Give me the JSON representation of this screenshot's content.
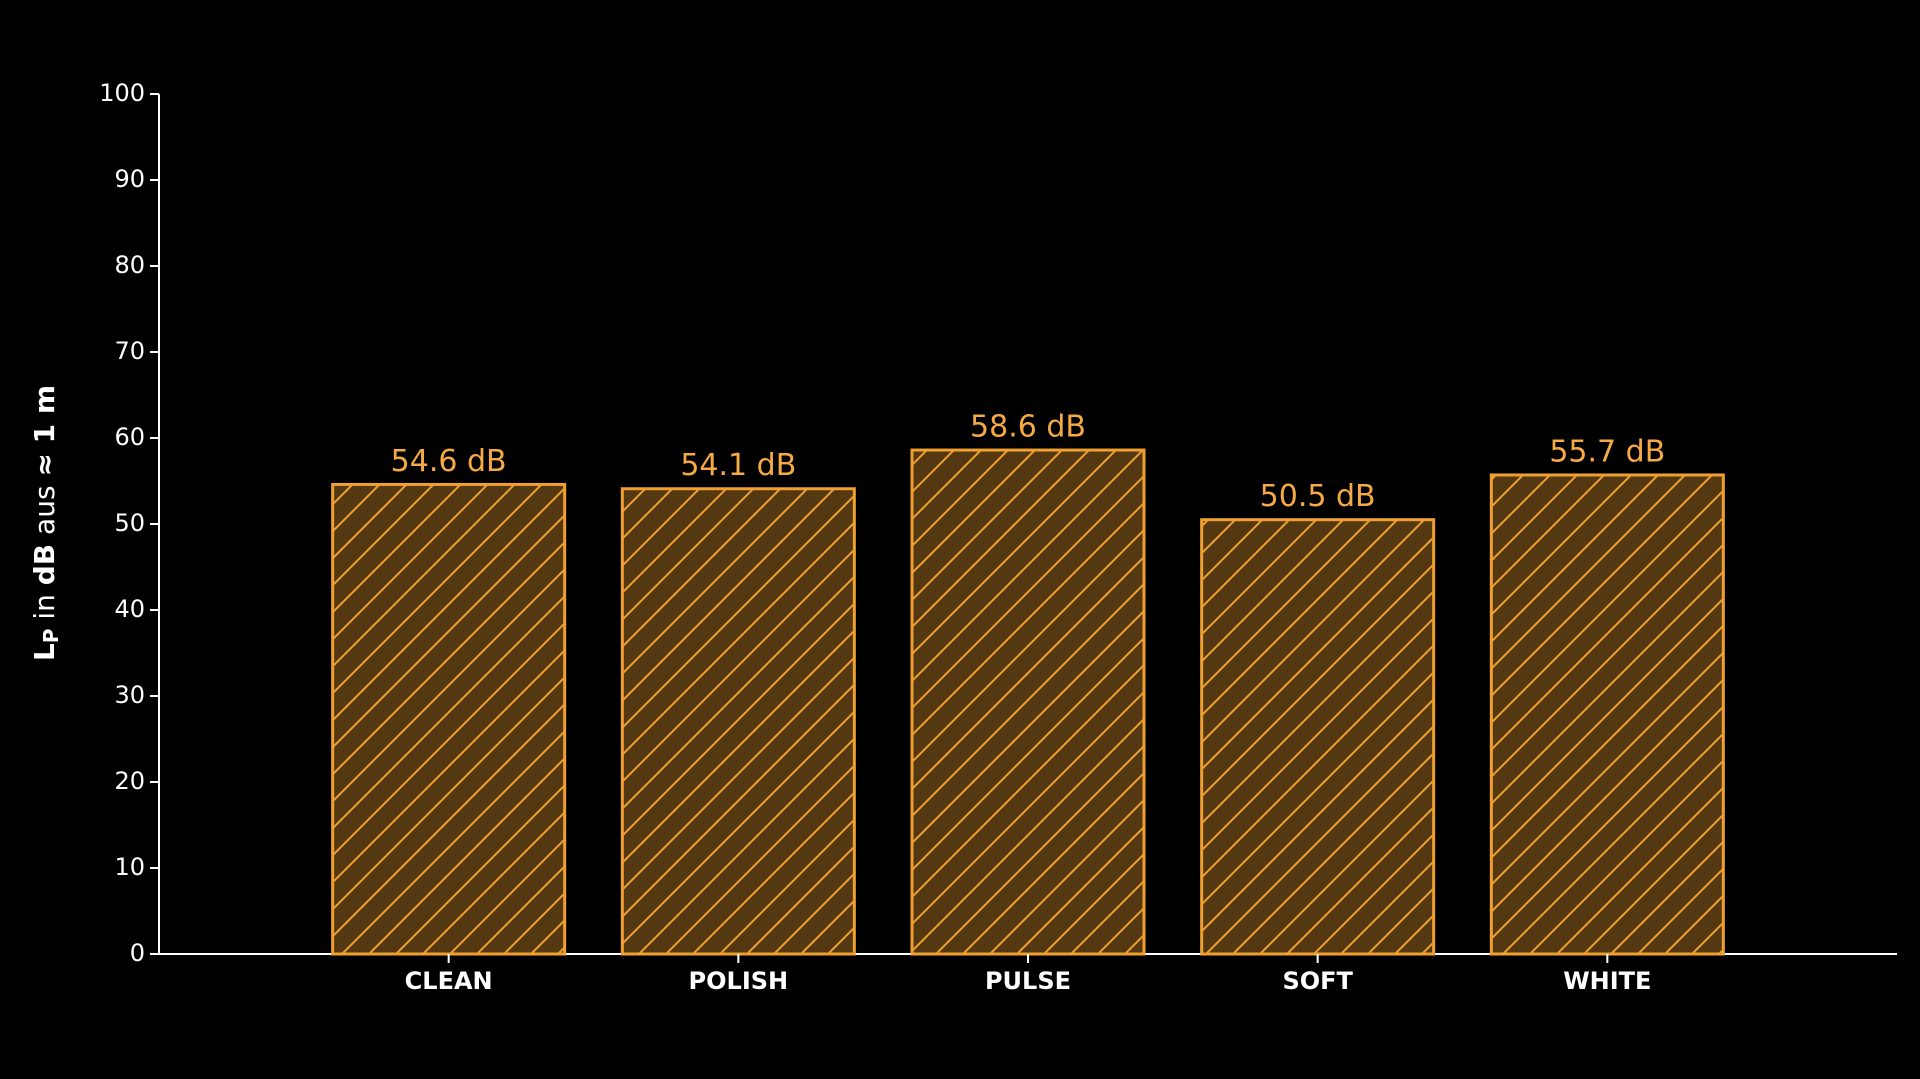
{
  "chart_data": {
    "type": "bar",
    "ylabel_parts": [
      "L",
      "P",
      " in ",
      "dB",
      " aus ",
      "≈ 1 m"
    ],
    "categories": [
      "CLEAN",
      "POLISH",
      "PULSE",
      "SOFT",
      "WHITE"
    ],
    "values": [
      54.6,
      54.1,
      58.6,
      50.5,
      55.7
    ],
    "value_labels": [
      "54.6 dB",
      "54.1 dB",
      "58.6 dB",
      "50.5 dB",
      "55.7 dB"
    ],
    "color": "#f0a030",
    "label_color": "#f5aa45",
    "ylim": [
      0,
      100
    ],
    "yticks": [
      0,
      10,
      20,
      30,
      40,
      50,
      60,
      70,
      80,
      90,
      100
    ],
    "hatch": "/",
    "grid": false
  }
}
